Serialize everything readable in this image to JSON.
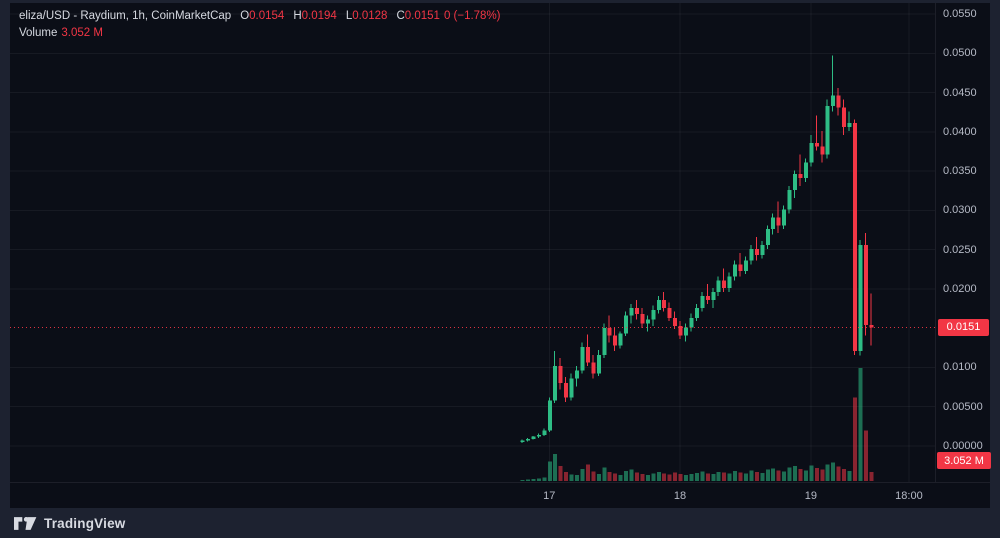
{
  "legend": {
    "title": "eliza/USD - Raydium, 1h, CoinMarketCap",
    "o_label": "O",
    "o_value": "0.0154",
    "h_label": "H",
    "h_value": "0.0194",
    "l_label": "L",
    "l_value": "0.0128",
    "c_label": "C",
    "c_value": "0.0151",
    "change_value": "0 (−1.78%)",
    "volume_label": "Volume",
    "volume_value": "3.052 M"
  },
  "attribution": {
    "label": "TradingView"
  },
  "colors": {
    "up": "#2ebd85",
    "down": "#f23645",
    "chart_background": "#0b0e17",
    "frame_background": "#1d2230",
    "grid": "rgba(240,243,250,0.055)",
    "axis_text": "#b6bac6",
    "badge_background": "#f23645",
    "badge_text": "#ffffff"
  },
  "chart_data": {
    "type": "candlestick",
    "title": "eliza/USD - Raydium, 1h, CoinMarketCap",
    "interval": "1h",
    "ylim": [
      0,
      0.055
    ],
    "grid": true,
    "y_ticks": [
      {
        "label": "0.0550",
        "value": 0.055
      },
      {
        "label": "0.0500",
        "value": 0.05
      },
      {
        "label": "0.0450",
        "value": 0.045
      },
      {
        "label": "0.0400",
        "value": 0.04
      },
      {
        "label": "0.0350",
        "value": 0.035
      },
      {
        "label": "0.0300",
        "value": 0.03
      },
      {
        "label": "0.0250",
        "value": 0.025
      },
      {
        "label": "0.0200",
        "value": 0.02
      },
      {
        "label": "0.0100",
        "value": 0.01
      },
      {
        "label": "0.00500",
        "value": 0.005
      },
      {
        "label": "0.00000",
        "value": 0.0
      }
    ],
    "x_ticks": [
      {
        "label": "17",
        "slot": 5
      },
      {
        "label": "18",
        "slot": 29
      },
      {
        "label": "19",
        "slot": 53
      },
      {
        "label": "18:00",
        "slot": 71
      }
    ],
    "current_price": 0.0151,
    "current_price_label": "0.0151",
    "current_volume_label": "3.052 M",
    "volume_max_m": 38,
    "last_candle_ohlc": {
      "open": 0.0154,
      "high": 0.0194,
      "low": 0.0128,
      "close": 0.0151
    },
    "candles": [
      [
        0.0005,
        0.0008,
        0.0004,
        0.0007,
        0.4
      ],
      [
        0.0007,
        0.001,
        0.0006,
        0.0009,
        0.5
      ],
      [
        0.0009,
        0.0013,
        0.0008,
        0.0012,
        0.7
      ],
      [
        0.0012,
        0.0016,
        0.001,
        0.0014,
        0.9
      ],
      [
        0.0014,
        0.0022,
        0.0013,
        0.002,
        1.2
      ],
      [
        0.002,
        0.0062,
        0.0018,
        0.0058,
        6.5
      ],
      [
        0.0058,
        0.0121,
        0.0055,
        0.0102,
        9.0
      ],
      [
        0.0102,
        0.0112,
        0.0072,
        0.008,
        5.0
      ],
      [
        0.008,
        0.0088,
        0.0056,
        0.0062,
        3.0
      ],
      [
        0.0062,
        0.0092,
        0.0058,
        0.0086,
        2.2
      ],
      [
        0.0086,
        0.0102,
        0.0076,
        0.0096,
        2.0
      ],
      [
        0.0096,
        0.0132,
        0.0092,
        0.0126,
        4.0
      ],
      [
        0.0126,
        0.0142,
        0.0102,
        0.0106,
        5.5
      ],
      [
        0.0106,
        0.0116,
        0.0086,
        0.0092,
        3.2
      ],
      [
        0.0092,
        0.0122,
        0.0089,
        0.0116,
        2.4
      ],
      [
        0.0116,
        0.0156,
        0.0112,
        0.015,
        4.5
      ],
      [
        0.015,
        0.0166,
        0.0132,
        0.0141,
        3.0
      ],
      [
        0.0141,
        0.0151,
        0.0121,
        0.0128,
        2.6
      ],
      [
        0.0128,
        0.0146,
        0.0124,
        0.0143,
        2.0
      ],
      [
        0.0143,
        0.0171,
        0.014,
        0.0166,
        3.4
      ],
      [
        0.0166,
        0.0181,
        0.0156,
        0.0176,
        3.8
      ],
      [
        0.0176,
        0.0186,
        0.0161,
        0.0168,
        2.8
      ],
      [
        0.0168,
        0.0176,
        0.015,
        0.0156,
        2.4
      ],
      [
        0.0156,
        0.0166,
        0.0146,
        0.0161,
        2.0
      ],
      [
        0.0161,
        0.0179,
        0.0153,
        0.0173,
        2.6
      ],
      [
        0.0173,
        0.0191,
        0.0169,
        0.0186,
        3.0
      ],
      [
        0.0186,
        0.0196,
        0.0171,
        0.0176,
        2.5
      ],
      [
        0.0176,
        0.0183,
        0.0159,
        0.0163,
        2.2
      ],
      [
        0.0163,
        0.0171,
        0.0149,
        0.0153,
        2.8
      ],
      [
        0.0153,
        0.0159,
        0.0136,
        0.0141,
        2.4
      ],
      [
        0.0141,
        0.0156,
        0.0133,
        0.0151,
        2.0
      ],
      [
        0.0151,
        0.0169,
        0.0146,
        0.0163,
        2.3
      ],
      [
        0.0163,
        0.0181,
        0.0159,
        0.0176,
        2.7
      ],
      [
        0.0176,
        0.0196,
        0.0171,
        0.0191,
        3.2
      ],
      [
        0.0191,
        0.0206,
        0.0181,
        0.0186,
        2.6
      ],
      [
        0.0186,
        0.0201,
        0.0176,
        0.0196,
        2.4
      ],
      [
        0.0196,
        0.0216,
        0.0191,
        0.0211,
        3.0
      ],
      [
        0.0211,
        0.0226,
        0.0196,
        0.0201,
        2.8
      ],
      [
        0.0201,
        0.0221,
        0.0196,
        0.0216,
        2.5
      ],
      [
        0.0216,
        0.0236,
        0.0211,
        0.0231,
        3.3
      ],
      [
        0.0231,
        0.0246,
        0.0216,
        0.0223,
        2.9
      ],
      [
        0.0223,
        0.0241,
        0.0219,
        0.0236,
        2.6
      ],
      [
        0.0236,
        0.0256,
        0.0231,
        0.0251,
        3.5
      ],
      [
        0.0251,
        0.0266,
        0.0236,
        0.0243,
        3.0
      ],
      [
        0.0243,
        0.0261,
        0.0239,
        0.0256,
        2.7
      ],
      [
        0.0256,
        0.0281,
        0.0251,
        0.0276,
        3.8
      ],
      [
        0.0276,
        0.0296,
        0.0269,
        0.0291,
        4.2
      ],
      [
        0.0291,
        0.0311,
        0.0271,
        0.0281,
        3.6
      ],
      [
        0.0281,
        0.0306,
        0.0276,
        0.0301,
        3.2
      ],
      [
        0.0301,
        0.0331,
        0.0296,
        0.0326,
        4.6
      ],
      [
        0.0326,
        0.0351,
        0.0316,
        0.0346,
        5.0
      ],
      [
        0.0346,
        0.0371,
        0.0331,
        0.0341,
        4.0
      ],
      [
        0.0341,
        0.0366,
        0.0336,
        0.0361,
        3.6
      ],
      [
        0.0361,
        0.0396,
        0.0356,
        0.0386,
        5.2
      ],
      [
        0.0386,
        0.0421,
        0.0376,
        0.0381,
        4.4
      ],
      [
        0.0381,
        0.0401,
        0.0361,
        0.0371,
        3.8
      ],
      [
        0.0371,
        0.0441,
        0.0366,
        0.0433,
        5.6
      ],
      [
        0.0433,
        0.0497,
        0.0426,
        0.0446,
        6.2
      ],
      [
        0.0446,
        0.0456,
        0.0421,
        0.0431,
        4.8
      ],
      [
        0.0431,
        0.0441,
        0.0396,
        0.0406,
        4.0
      ],
      [
        0.0406,
        0.0426,
        0.0401,
        0.0411,
        3.4
      ],
      [
        0.0411,
        0.0416,
        0.0116,
        0.0121,
        28.0
      ],
      [
        0.0121,
        0.0262,
        0.0115,
        0.0256,
        38.0
      ],
      [
        0.0256,
        0.0271,
        0.0141,
        0.0154,
        17.0
      ],
      [
        0.0154,
        0.0194,
        0.0128,
        0.0151,
        3.05
      ]
    ]
  }
}
